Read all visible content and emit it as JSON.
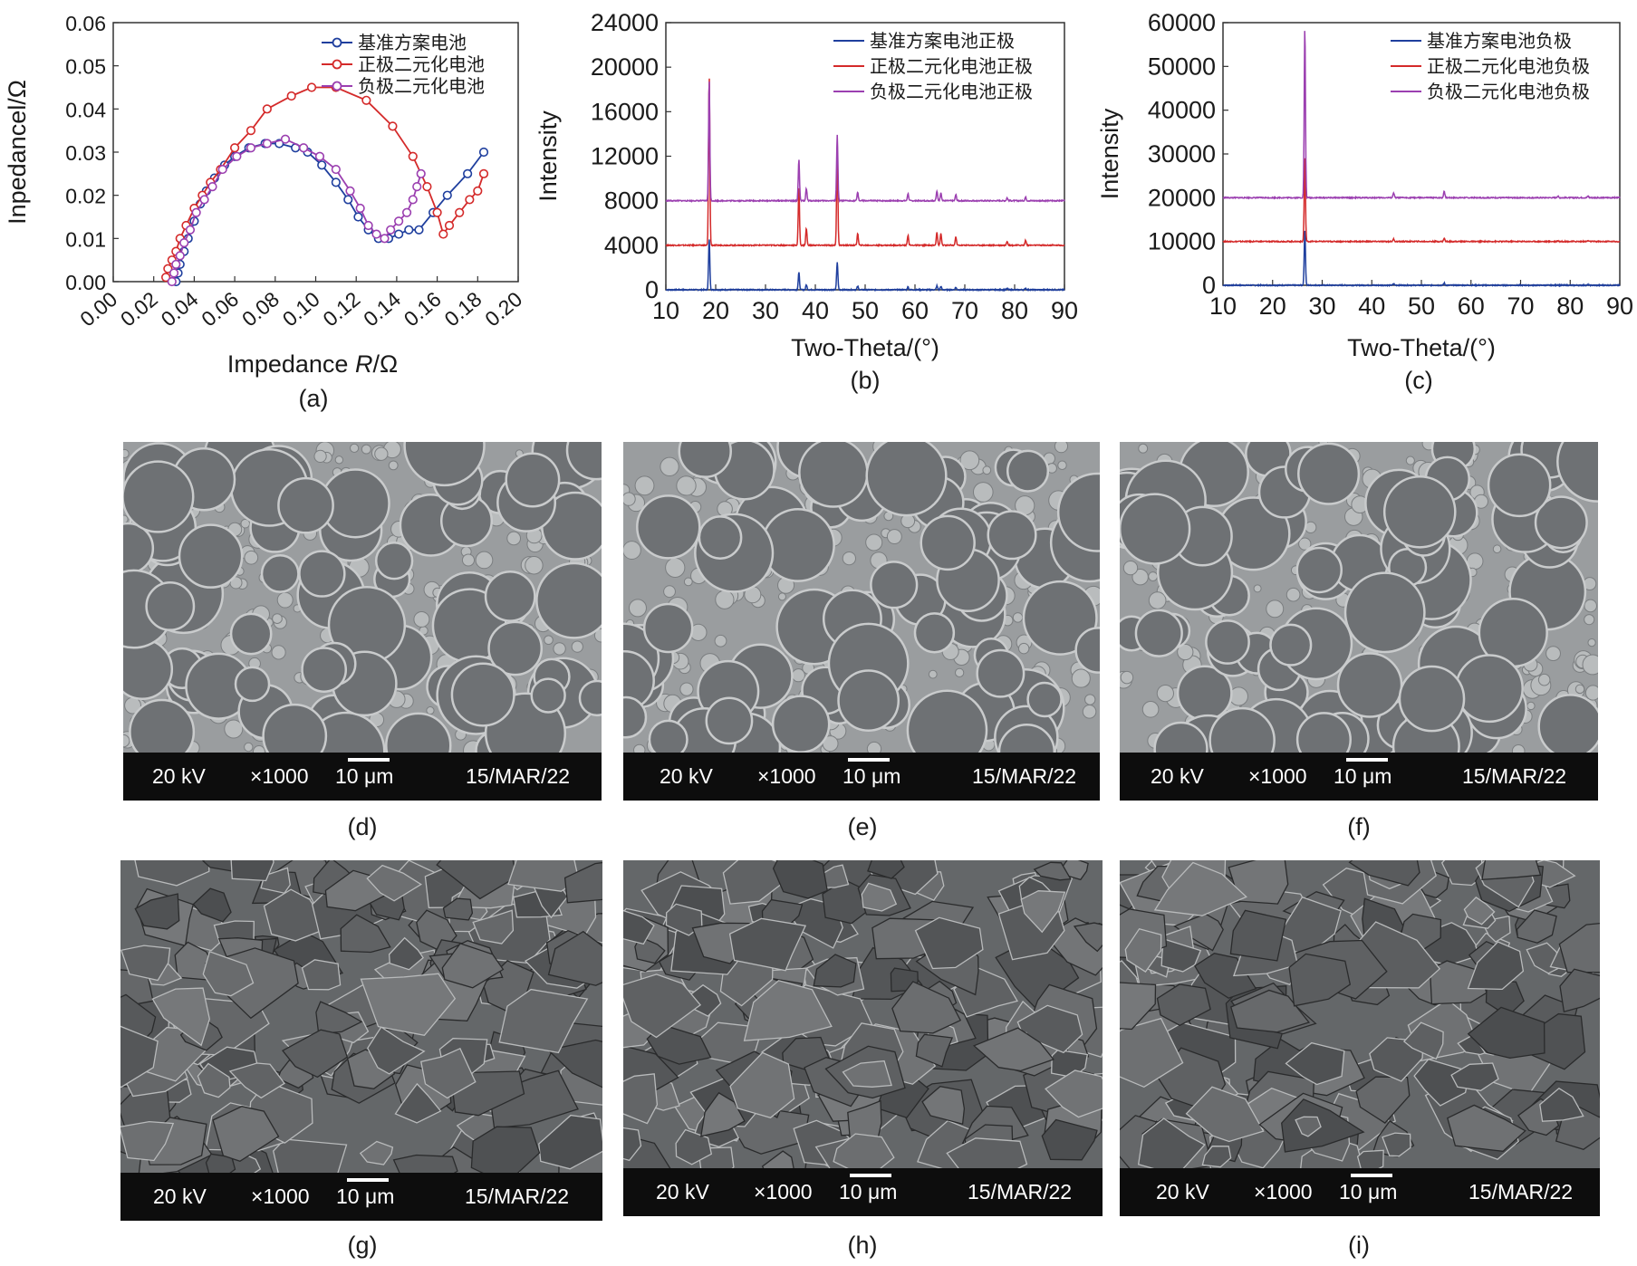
{
  "chart_data": [
    {
      "panel": "(a)",
      "type": "line",
      "xlabel": "Impedance R/Ω",
      "ylabel": "Inpedancel/Ω",
      "xlim": [
        0,
        0.2
      ],
      "ylim": [
        0,
        0.06
      ],
      "xticks": [
        "0.00",
        "0.02",
        "0.04",
        "0.06",
        "0.08",
        "0.10",
        "0.12",
        "0.14",
        "0.16",
        "0.18",
        "0.20"
      ],
      "yticks": [
        "0.00",
        "0.01",
        "0.02",
        "0.03",
        "0.04",
        "0.05",
        "0.06"
      ],
      "legend_position": "top-right",
      "series": [
        {
          "name": "基准方案电池",
          "color": "#1f3f9e",
          "points": [
            [
              0.031,
              0
            ],
            [
              0.032,
              0.002
            ],
            [
              0.033,
              0.004
            ],
            [
              0.035,
              0.007
            ],
            [
              0.037,
              0.01
            ],
            [
              0.04,
              0.014
            ],
            [
              0.043,
              0.018
            ],
            [
              0.046,
              0.021
            ],
            [
              0.05,
              0.024
            ],
            [
              0.055,
              0.027
            ],
            [
              0.06,
              0.029
            ],
            [
              0.067,
              0.031
            ],
            [
              0.075,
              0.032
            ],
            [
              0.082,
              0.032
            ],
            [
              0.09,
              0.031
            ],
            [
              0.096,
              0.03
            ],
            [
              0.103,
              0.027
            ],
            [
              0.11,
              0.023
            ],
            [
              0.116,
              0.019
            ],
            [
              0.121,
              0.015
            ],
            [
              0.126,
              0.012
            ],
            [
              0.131,
              0.01
            ],
            [
              0.136,
              0.01
            ],
            [
              0.141,
              0.011
            ],
            [
              0.146,
              0.012
            ],
            [
              0.151,
              0.012
            ],
            [
              0.158,
              0.016
            ],
            [
              0.165,
              0.02
            ],
            [
              0.175,
              0.025
            ],
            [
              0.183,
              0.03
            ]
          ]
        },
        {
          "name": "正极二元化电池",
          "color": "#d42a2a",
          "points": [
            [
              0.026,
              0.001
            ],
            [
              0.027,
              0.003
            ],
            [
              0.029,
              0.005
            ],
            [
              0.031,
              0.007
            ],
            [
              0.033,
              0.01
            ],
            [
              0.036,
              0.013
            ],
            [
              0.04,
              0.017
            ],
            [
              0.044,
              0.02
            ],
            [
              0.048,
              0.023
            ],
            [
              0.053,
              0.026
            ],
            [
              0.06,
              0.031
            ],
            [
              0.068,
              0.035
            ],
            [
              0.076,
              0.04
            ],
            [
              0.088,
              0.043
            ],
            [
              0.098,
              0.045
            ],
            [
              0.11,
              0.045
            ],
            [
              0.125,
              0.042
            ],
            [
              0.138,
              0.036
            ],
            [
              0.148,
              0.029
            ],
            [
              0.155,
              0.022
            ],
            [
              0.16,
              0.016
            ],
            [
              0.163,
              0.011
            ],
            [
              0.166,
              0.013
            ],
            [
              0.171,
              0.016
            ],
            [
              0.176,
              0.019
            ],
            [
              0.18,
              0.021
            ],
            [
              0.183,
              0.025
            ]
          ]
        },
        {
          "name": "负极二元化电池",
          "color": "#9b3fb0",
          "points": [
            [
              0.029,
              0
            ],
            [
              0.03,
              0.002
            ],
            [
              0.031,
              0.004
            ],
            [
              0.033,
              0.006
            ],
            [
              0.035,
              0.009
            ],
            [
              0.038,
              0.012
            ],
            [
              0.041,
              0.016
            ],
            [
              0.045,
              0.019
            ],
            [
              0.049,
              0.022
            ],
            [
              0.054,
              0.026
            ],
            [
              0.061,
              0.029
            ],
            [
              0.068,
              0.031
            ],
            [
              0.076,
              0.032
            ],
            [
              0.085,
              0.033
            ],
            [
              0.094,
              0.031
            ],
            [
              0.102,
              0.029
            ],
            [
              0.11,
              0.026
            ],
            [
              0.117,
              0.021
            ],
            [
              0.122,
              0.017
            ],
            [
              0.126,
              0.013
            ],
            [
              0.13,
              0.011
            ],
            [
              0.134,
              0.01
            ],
            [
              0.137,
              0.012
            ],
            [
              0.141,
              0.014
            ],
            [
              0.145,
              0.016
            ],
            [
              0.148,
              0.019
            ],
            [
              0.15,
              0.022
            ],
            [
              0.152,
              0.025
            ]
          ]
        }
      ]
    },
    {
      "panel": "(b)",
      "type": "line",
      "xlabel": "Two-Theta/(°)",
      "ylabel": "Intensity",
      "xlim": [
        10,
        90
      ],
      "ylim": [
        0,
        24000
      ],
      "xticks": [
        "10",
        "20",
        "30",
        "40",
        "50",
        "60",
        "70",
        "80",
        "90"
      ],
      "yticks": [
        "0",
        "4000",
        "8000",
        "12000",
        "16000",
        "20000",
        "24000"
      ],
      "legend_position": "top-right",
      "peaks": [
        [
          18.7,
          1
        ],
        [
          36.7,
          0.34
        ],
        [
          38.2,
          0.1
        ],
        [
          44.4,
          0.55
        ],
        [
          48.5,
          0.07
        ],
        [
          58.6,
          0.06
        ],
        [
          64.4,
          0.08
        ],
        [
          65.2,
          0.07
        ],
        [
          68.2,
          0.05
        ],
        [
          78.5,
          0.025
        ],
        [
          82.2,
          0.03
        ]
      ],
      "peak_scale": 10800,
      "series": [
        {
          "name": "基准方案电池正极",
          "color": "#1f3f9e",
          "offset": 0,
          "scale": 0.42
        },
        {
          "name": "正极二元化电池正极",
          "color": "#d42a2a",
          "offset": 4000,
          "scale": 1.4
        },
        {
          "name": "负极二元化电池正极",
          "color": "#9b3fb0",
          "offset": 8000,
          "scale": 1.0
        }
      ]
    },
    {
      "panel": "(c)",
      "type": "line",
      "xlabel": "Two-Theta/(°)",
      "ylabel": "Intensity",
      "xlim": [
        10,
        90
      ],
      "ylim": [
        0,
        60000
      ],
      "xticks": [
        "10",
        "20",
        "30",
        "40",
        "50",
        "60",
        "70",
        "80",
        "90"
      ],
      "yticks": [
        "0",
        "10000",
        "20000",
        "30000",
        "40000",
        "50000",
        "60000"
      ],
      "legend_position": "top-right",
      "peaks": [
        [
          26.5,
          1
        ],
        [
          44.4,
          0.03
        ],
        [
          54.6,
          0.04
        ],
        [
          77.5,
          0.01
        ],
        [
          83.6,
          0.01
        ]
      ],
      "peak_scale": 38500,
      "series": [
        {
          "name": "基准方案电池负极",
          "color": "#1f3f9e",
          "offset": 0,
          "scale": 0.33
        },
        {
          "name": "正极二元化电池负极",
          "color": "#d42a2a",
          "offset": 10000,
          "scale": 0.5
        },
        {
          "name": "负极二元化电池负极",
          "color": "#9b3fb0",
          "offset": 20000,
          "scale": 1.0
        }
      ]
    }
  ],
  "panel_labels": {
    "a": "(a)",
    "b": "(b)",
    "c": "(c)",
    "d": "(d)",
    "e": "(e)",
    "f": "(f)",
    "g": "(g)",
    "h": "(h)",
    "i": "(i)"
  },
  "sem": {
    "voltage": "20 kV",
    "magnification": "×1000",
    "scale": "10 μm",
    "date": "15/MAR/22",
    "images": [
      {
        "id": "d",
        "texture": "spherical particles"
      },
      {
        "id": "e",
        "texture": "spherical particles"
      },
      {
        "id": "f",
        "texture": "spherical particles"
      },
      {
        "id": "g",
        "texture": "flaky graphite"
      },
      {
        "id": "h",
        "texture": "flaky graphite"
      },
      {
        "id": "i",
        "texture": "flaky graphite"
      }
    ]
  }
}
